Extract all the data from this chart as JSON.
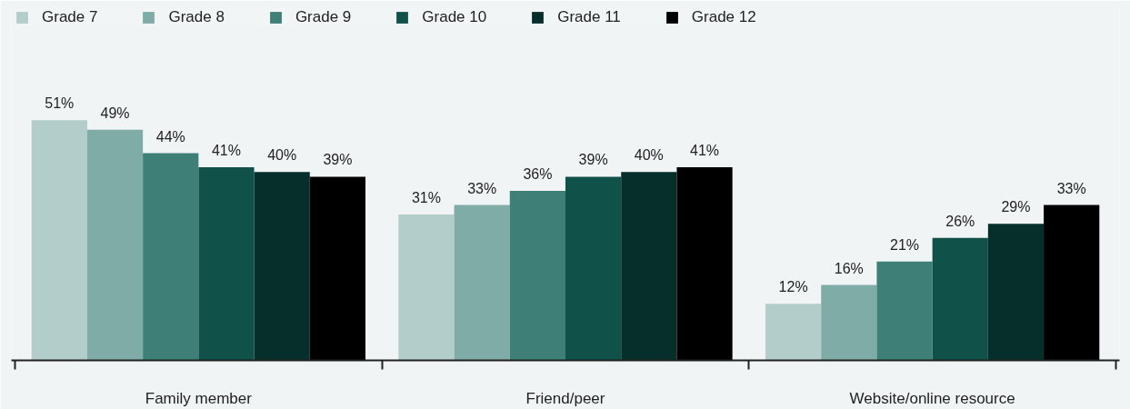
{
  "chart_data": {
    "type": "bar",
    "categories": [
      "Family member",
      "Friend/peer",
      "Website/online resource"
    ],
    "series": [
      {
        "name": "Grade 7",
        "color": "#b3cdca",
        "values": [
          51,
          31,
          12
        ],
        "value_labels": [
          "51%",
          "31%",
          "12%"
        ]
      },
      {
        "name": "Grade 8",
        "color": "#80aca7",
        "values": [
          49,
          33,
          16
        ],
        "value_labels": [
          "49%",
          "33%",
          "16%"
        ]
      },
      {
        "name": "Grade 9",
        "color": "#3e7f77",
        "values": [
          44,
          36,
          21
        ],
        "value_labels": [
          "44%",
          "36%",
          "21%"
        ]
      },
      {
        "name": "Grade 10",
        "color": "#10524a",
        "values": [
          41,
          39,
          26
        ],
        "value_labels": [
          "41%",
          "39%",
          "26%"
        ]
      },
      {
        "name": "Grade 11",
        "color": "#062f2b",
        "values": [
          40,
          40,
          29
        ],
        "value_labels": [
          "40%",
          "40%",
          "29%"
        ]
      },
      {
        "name": "Grade 12",
        "color": "#000000",
        "values": [
          39,
          41,
          33
        ],
        "value_labels": [
          "39%",
          "41%",
          "33%"
        ]
      }
    ],
    "legend": "top",
    "tick_labels": "x"
  }
}
